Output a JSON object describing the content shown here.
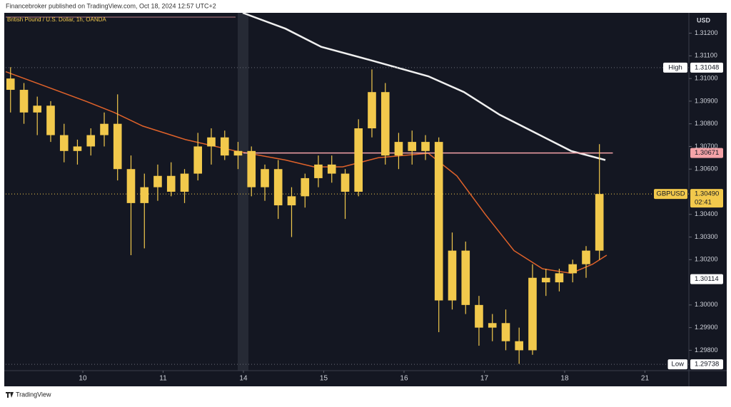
{
  "header": "Financebroker published on TradingView.com, Oct 18, 2024 12:57 UTC+2",
  "footer": "TradingView",
  "chart_data": {
    "type": "candlestick",
    "title": "British Pound / U.S. Dollar, 1h, OANDA",
    "currency": "USD",
    "color": "#f2c94c",
    "x": [
      0.1,
      0.267,
      0.433,
      0.6,
      0.767,
      0.933,
      1.1,
      1.267,
      1.433,
      1.6,
      1.767,
      1.933,
      2.1,
      2.267,
      2.433,
      2.6,
      2.767,
      2.933,
      3.1,
      3.267,
      3.433,
      3.6,
      3.767,
      3.933,
      4.1,
      4.267,
      4.433,
      4.6,
      4.767,
      4.933,
      5.1,
      5.267,
      5.433,
      5.6,
      5.767,
      5.933,
      6.1,
      6.267,
      6.433,
      6.6,
      6.767,
      6.933,
      7.1,
      7.267,
      7.433
    ],
    "open": [
      1.31,
      1.3095,
      1.3085,
      1.3088,
      1.3075,
      1.3068,
      1.307,
      1.3075,
      1.308,
      1.306,
      1.3045,
      1.3052,
      1.3057,
      1.305,
      1.3058,
      1.307,
      1.3074,
      1.3066,
      1.3068,
      1.3052,
      1.306,
      1.3044,
      1.3048,
      1.3056,
      1.3062,
      1.3058,
      1.305,
      1.3078,
      1.3094,
      1.3066,
      1.3072,
      1.3068,
      1.3072,
      1.3002,
      1.3024,
      1.3,
      1.299,
      1.2992,
      1.2984,
      1.298,
      1.3012,
      1.301,
      1.3014,
      1.3018,
      1.3024
    ],
    "high": [
      1.3105,
      1.3098,
      1.3092,
      1.309,
      1.308,
      1.3073,
      1.3078,
      1.3085,
      1.3093,
      1.3066,
      1.3058,
      1.3062,
      1.3063,
      1.306,
      1.3076,
      1.3078,
      1.3077,
      1.3072,
      1.307,
      1.3062,
      1.3064,
      1.3052,
      1.3058,
      1.3066,
      1.3066,
      1.306,
      1.3082,
      1.3104,
      1.3098,
      1.3076,
      1.3077,
      1.3075,
      1.3074,
      1.3032,
      1.3028,
      1.3004,
      1.2996,
      1.2998,
      1.299,
      1.3018,
      1.3016,
      1.3016,
      1.302,
      1.3026,
      1.3071
    ],
    "low": [
      1.3085,
      1.308,
      1.3075,
      1.3072,
      1.3063,
      1.3062,
      1.3066,
      1.307,
      1.3055,
      1.3022,
      1.3025,
      1.3046,
      1.3048,
      1.3045,
      1.3055,
      1.3062,
      1.3064,
      1.306,
      1.3048,
      1.3046,
      1.3038,
      1.303,
      1.3043,
      1.3052,
      1.3054,
      1.3038,
      1.3048,
      1.3074,
      1.3062,
      1.306,
      1.3062,
      1.3064,
      1.2988,
      1.2998,
      1.2996,
      1.2982,
      1.2984,
      1.298,
      1.2974,
      1.2978,
      1.3004,
      1.3006,
      1.301,
      1.3012,
      1.302
    ],
    "close": [
      1.3095,
      1.3085,
      1.3088,
      1.3075,
      1.3068,
      1.307,
      1.3075,
      1.308,
      1.306,
      1.3045,
      1.3052,
      1.3057,
      1.305,
      1.3058,
      1.307,
      1.3074,
      1.3066,
      1.3068,
      1.3052,
      1.306,
      1.3044,
      1.3048,
      1.3056,
      1.3062,
      1.3058,
      1.305,
      1.3078,
      1.3094,
      1.3066,
      1.3072,
      1.3068,
      1.3072,
      1.3002,
      1.3024,
      1.3,
      1.299,
      1.2992,
      1.2984,
      1.298,
      1.3012,
      1.301,
      1.3014,
      1.3018,
      1.3024,
      1.3049
    ],
    "lines": [
      {
        "color": "#f0f0f0",
        "x": [
          2.991,
          3.524,
          3.969,
          4.591,
          5.302,
          5.747,
          6.191,
          6.636,
          7.08,
          7.507
        ],
        "values": [
          1.3129,
          1.3122,
          1.3114,
          1.3108,
          1.3101,
          1.3094,
          1.3084,
          1.3076,
          1.3068,
          1.3064
        ]
      },
      {
        "color": "#e0622a",
        "x": [
          0.04,
          0.502,
          1.036,
          1.391,
          1.747,
          2.28,
          2.902,
          3.524,
          3.88,
          4.236,
          4.68,
          5.302,
          5.658,
          6.013,
          6.369,
          6.724,
          7.08,
          7.347,
          7.524
        ],
        "values": [
          1.3103,
          1.3097,
          1.309,
          1.3085,
          1.3079,
          1.3073,
          1.3068,
          1.3064,
          1.3061,
          1.3061,
          1.3065,
          1.3067,
          1.3057,
          1.304,
          1.3024,
          1.3016,
          1.3014,
          1.3018,
          1.3022
        ]
      }
    ],
    "xlim": [
      0.04,
      8.547
    ],
    "xticks": [
      {
        "value": 1,
        "label": "10"
      },
      {
        "value": 2,
        "label": "11"
      },
      {
        "value": 3,
        "label": "14"
      },
      {
        "value": 4,
        "label": "15"
      },
      {
        "value": 5,
        "label": "16"
      },
      {
        "value": 6,
        "label": "17"
      },
      {
        "value": 7,
        "label": "18"
      },
      {
        "value": 8,
        "label": "21"
      }
    ],
    "ylim": [
      1.2971,
      1.3129
    ],
    "yticks": [
      {
        "value": 1.312,
        "label": "1.31200"
      },
      {
        "value": 1.311,
        "label": "1.31100"
      },
      {
        "value": 1.31,
        "label": "1.31000"
      },
      {
        "value": 1.309,
        "label": "1.30900"
      },
      {
        "value": 1.308,
        "label": "1.30800"
      },
      {
        "value": 1.307,
        "label": "1.30700"
      },
      {
        "value": 1.306,
        "label": "1.30600"
      },
      {
        "value": 1.304,
        "label": "1.30400"
      },
      {
        "value": 1.303,
        "label": "1.30300"
      },
      {
        "value": 1.302,
        "label": "1.30200"
      },
      {
        "value": 1.3,
        "label": "1.30000"
      },
      {
        "value": 1.299,
        "label": "1.29900"
      },
      {
        "value": 1.298,
        "label": "1.29800"
      }
    ],
    "markers": [
      {
        "label": "High",
        "value": 1.31048,
        "value_labels": "1.31048",
        "color": "#ffffff",
        "line": "dotted"
      },
      {
        "value": 1.30671,
        "value_labels": "1.30671",
        "color": "#f4a3a8",
        "line": "solid"
      },
      {
        "label": "GBPUSD",
        "value": 1.3049,
        "value_labels": "1.30490",
        "countdown": "02:41",
        "color": "#f2c94c",
        "line": "dotted"
      },
      {
        "value": 1.30114,
        "value_labels": "1.30114",
        "color": "#ffffff",
        "line": "none"
      },
      {
        "label": "Low",
        "value": 1.29738,
        "value_labels": "1.29738",
        "color": "#ffffff",
        "line": "dotted"
      }
    ]
  }
}
